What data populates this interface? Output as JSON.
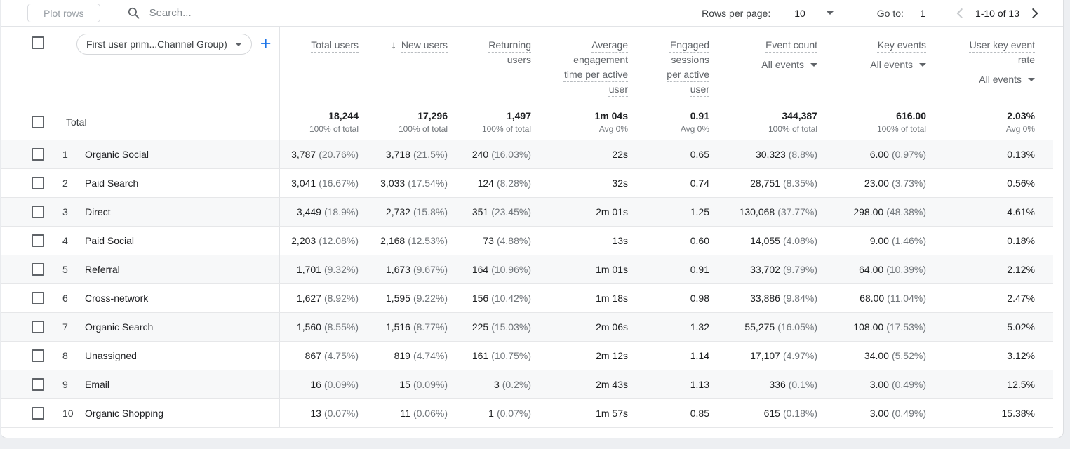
{
  "toolbar": {
    "plot_rows_label": "Plot rows",
    "search_placeholder": "Search...",
    "rows_per_page_label": "Rows per page:",
    "rows_per_page_value": "10",
    "go_to_label": "Go to:",
    "go_to_value": "1",
    "pagination_range": "1-10 of 13"
  },
  "colors": {
    "accent_blue": "#1a73e8",
    "row_stripe": "#f7f8f9",
    "header_text": "#5f6368",
    "value_text": "#202124",
    "secondary_text": "#70757a"
  },
  "header": {
    "dimension_selector_value": "First user prim...Channel Group)",
    "add_dimension_label": "+",
    "columns": [
      {
        "label": "Total users",
        "sorted": false,
        "sub": ""
      },
      {
        "label": "New users",
        "sorted": true,
        "sub": ""
      },
      {
        "label": "Returning users",
        "sorted": false,
        "sub": ""
      },
      {
        "label": "Average engagement time per active user",
        "sorted": false,
        "sub": ""
      },
      {
        "label": "Engaged sessions per active user",
        "sorted": false,
        "sub": ""
      },
      {
        "label": "Event count",
        "sorted": false,
        "sub": "All events"
      },
      {
        "label": "Key events",
        "sorted": false,
        "sub": "All events"
      },
      {
        "label": "User key event rate",
        "sorted": false,
        "sub": "All events"
      }
    ]
  },
  "totals": {
    "label": "Total",
    "cells": [
      {
        "value": "18,244",
        "sub": "100% of total"
      },
      {
        "value": "17,296",
        "sub": "100% of total"
      },
      {
        "value": "1,497",
        "sub": "100% of total"
      },
      {
        "value": "1m 04s",
        "sub": "Avg 0%"
      },
      {
        "value": "0.91",
        "sub": "Avg 0%"
      },
      {
        "value": "344,387",
        "sub": "100% of total"
      },
      {
        "value": "616.00",
        "sub": "100% of total"
      },
      {
        "value": "2.03%",
        "sub": "Avg 0%"
      }
    ]
  },
  "rows": [
    {
      "num": "1",
      "name": "Organic Social",
      "cells": [
        [
          "3,787",
          "(20.76%)"
        ],
        [
          "3,718",
          "(21.5%)"
        ],
        [
          "240",
          "(16.03%)"
        ],
        [
          "22s",
          ""
        ],
        [
          "0.65",
          ""
        ],
        [
          "30,323",
          "(8.8%)"
        ],
        [
          "6.00",
          "(0.97%)"
        ],
        [
          "0.13%",
          ""
        ]
      ]
    },
    {
      "num": "2",
      "name": "Paid Search",
      "cells": [
        [
          "3,041",
          "(16.67%)"
        ],
        [
          "3,033",
          "(17.54%)"
        ],
        [
          "124",
          "(8.28%)"
        ],
        [
          "32s",
          ""
        ],
        [
          "0.74",
          ""
        ],
        [
          "28,751",
          "(8.35%)"
        ],
        [
          "23.00",
          "(3.73%)"
        ],
        [
          "0.56%",
          ""
        ]
      ]
    },
    {
      "num": "3",
      "name": "Direct",
      "cells": [
        [
          "3,449",
          "(18.9%)"
        ],
        [
          "2,732",
          "(15.8%)"
        ],
        [
          "351",
          "(23.45%)"
        ],
        [
          "2m 01s",
          ""
        ],
        [
          "1.25",
          ""
        ],
        [
          "130,068",
          "(37.77%)"
        ],
        [
          "298.00",
          "(48.38%)"
        ],
        [
          "4.61%",
          ""
        ]
      ]
    },
    {
      "num": "4",
      "name": "Paid Social",
      "cells": [
        [
          "2,203",
          "(12.08%)"
        ],
        [
          "2,168",
          "(12.53%)"
        ],
        [
          "73",
          "(4.88%)"
        ],
        [
          "13s",
          ""
        ],
        [
          "0.60",
          ""
        ],
        [
          "14,055",
          "(4.08%)"
        ],
        [
          "9.00",
          "(1.46%)"
        ],
        [
          "0.18%",
          ""
        ]
      ]
    },
    {
      "num": "5",
      "name": "Referral",
      "cells": [
        [
          "1,701",
          "(9.32%)"
        ],
        [
          "1,673",
          "(9.67%)"
        ],
        [
          "164",
          "(10.96%)"
        ],
        [
          "1m 01s",
          ""
        ],
        [
          "0.91",
          ""
        ],
        [
          "33,702",
          "(9.79%)"
        ],
        [
          "64.00",
          "(10.39%)"
        ],
        [
          "2.12%",
          ""
        ]
      ]
    },
    {
      "num": "6",
      "name": "Cross-network",
      "cells": [
        [
          "1,627",
          "(8.92%)"
        ],
        [
          "1,595",
          "(9.22%)"
        ],
        [
          "156",
          "(10.42%)"
        ],
        [
          "1m 18s",
          ""
        ],
        [
          "0.98",
          ""
        ],
        [
          "33,886",
          "(9.84%)"
        ],
        [
          "68.00",
          "(11.04%)"
        ],
        [
          "2.47%",
          ""
        ]
      ]
    },
    {
      "num": "7",
      "name": "Organic Search",
      "cells": [
        [
          "1,560",
          "(8.55%)"
        ],
        [
          "1,516",
          "(8.77%)"
        ],
        [
          "225",
          "(15.03%)"
        ],
        [
          "2m 06s",
          ""
        ],
        [
          "1.32",
          ""
        ],
        [
          "55,275",
          "(16.05%)"
        ],
        [
          "108.00",
          "(17.53%)"
        ],
        [
          "5.02%",
          ""
        ]
      ]
    },
    {
      "num": "8",
      "name": "Unassigned",
      "cells": [
        [
          "867",
          "(4.75%)"
        ],
        [
          "819",
          "(4.74%)"
        ],
        [
          "161",
          "(10.75%)"
        ],
        [
          "2m 12s",
          ""
        ],
        [
          "1.14",
          ""
        ],
        [
          "17,107",
          "(4.97%)"
        ],
        [
          "34.00",
          "(5.52%)"
        ],
        [
          "3.12%",
          ""
        ]
      ]
    },
    {
      "num": "9",
      "name": "Email",
      "cells": [
        [
          "16",
          "(0.09%)"
        ],
        [
          "15",
          "(0.09%)"
        ],
        [
          "3",
          "(0.2%)"
        ],
        [
          "2m 43s",
          ""
        ],
        [
          "1.13",
          ""
        ],
        [
          "336",
          "(0.1%)"
        ],
        [
          "3.00",
          "(0.49%)"
        ],
        [
          "12.5%",
          ""
        ]
      ]
    },
    {
      "num": "10",
      "name": "Organic Shopping",
      "cells": [
        [
          "13",
          "(0.07%)"
        ],
        [
          "11",
          "(0.06%)"
        ],
        [
          "1",
          "(0.07%)"
        ],
        [
          "1m 57s",
          ""
        ],
        [
          "0.85",
          ""
        ],
        [
          "615",
          "(0.18%)"
        ],
        [
          "3.00",
          "(0.49%)"
        ],
        [
          "15.38%",
          ""
        ]
      ]
    }
  ]
}
